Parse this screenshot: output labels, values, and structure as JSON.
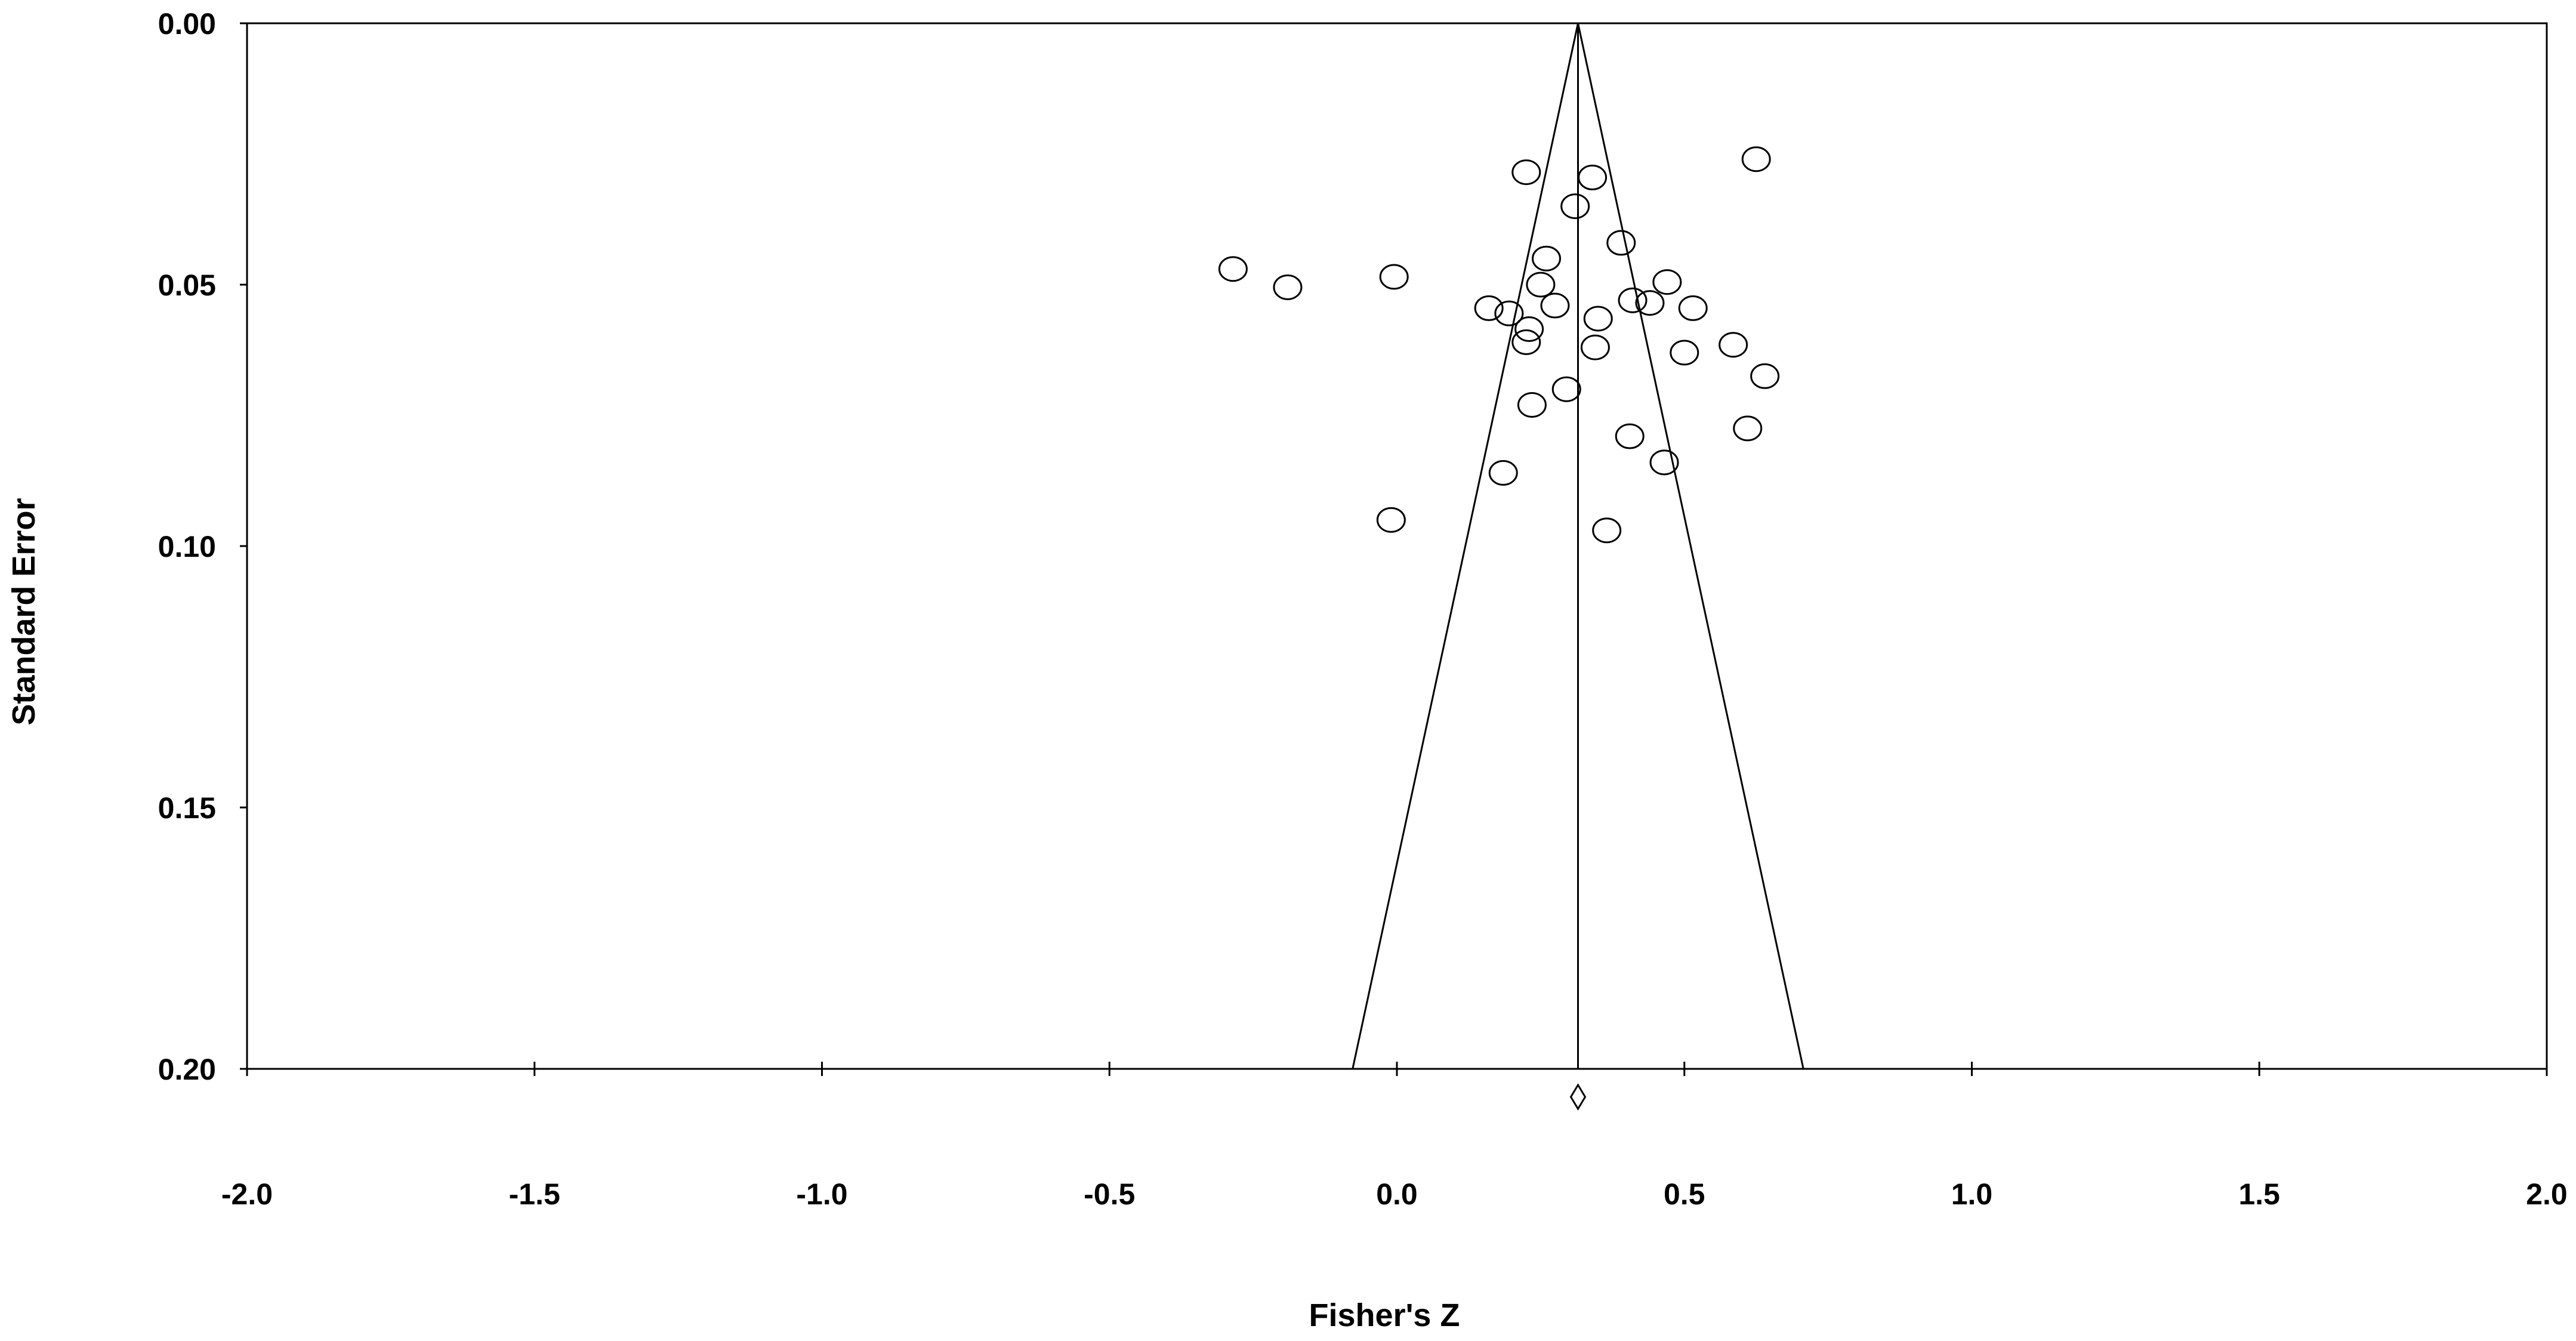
{
  "chart_data": {
    "type": "scatter",
    "title": "",
    "xlabel": "Fisher's Z",
    "ylabel": "Standard Error",
    "xlim": [
      -2.0,
      2.0
    ],
    "ylim": [
      0.0,
      0.2
    ],
    "y_inverted": true,
    "x_ticks": [
      "-2.0",
      "-1.5",
      "-1.0",
      "-0.5",
      "0.0",
      "0.5",
      "1.0",
      "1.5",
      "2.0"
    ],
    "y_ticks": [
      "0.00",
      "0.05",
      "0.10",
      "0.15",
      "0.20"
    ],
    "grid": false,
    "legend": "none",
    "pooled_estimate": 0.315,
    "funnel_apex_se": 0.0,
    "funnel_bottom_se": 0.2,
    "funnel_bottom_x": [
      -0.077,
      0.707
    ],
    "series": [
      {
        "marker": "open-circle",
        "points": [
          {
            "x": 0.225,
            "y": 0.0285
          },
          {
            "x": 0.34,
            "y": 0.0295
          },
          {
            "x": 0.625,
            "y": 0.026
          },
          {
            "x": 0.31,
            "y": 0.035
          },
          {
            "x": 0.39,
            "y": 0.042
          },
          {
            "x": 0.26,
            "y": 0.045
          },
          {
            "x": -0.285,
            "y": 0.047
          },
          {
            "x": -0.19,
            "y": 0.0505
          },
          {
            "x": -0.005,
            "y": 0.0485
          },
          {
            "x": 0.25,
            "y": 0.05
          },
          {
            "x": 0.47,
            "y": 0.0495
          },
          {
            "x": 0.41,
            "y": 0.053
          },
          {
            "x": 0.44,
            "y": 0.0535
          },
          {
            "x": 0.275,
            "y": 0.054
          },
          {
            "x": 0.16,
            "y": 0.0545
          },
          {
            "x": 0.195,
            "y": 0.0555
          },
          {
            "x": 0.35,
            "y": 0.0565
          },
          {
            "x": 0.515,
            "y": 0.0545
          },
          {
            "x": 0.23,
            "y": 0.0585
          },
          {
            "x": 0.225,
            "y": 0.061
          },
          {
            "x": 0.345,
            "y": 0.062
          },
          {
            "x": 0.5,
            "y": 0.063
          },
          {
            "x": 0.585,
            "y": 0.0615
          },
          {
            "x": 0.64,
            "y": 0.0675
          },
          {
            "x": 0.295,
            "y": 0.07
          },
          {
            "x": 0.235,
            "y": 0.073
          },
          {
            "x": 0.405,
            "y": 0.079
          },
          {
            "x": 0.61,
            "y": 0.0775
          },
          {
            "x": 0.465,
            "y": 0.084
          },
          {
            "x": 0.185,
            "y": 0.086
          },
          {
            "x": -0.01,
            "y": 0.095
          },
          {
            "x": 0.365,
            "y": 0.097
          }
        ]
      }
    ]
  }
}
